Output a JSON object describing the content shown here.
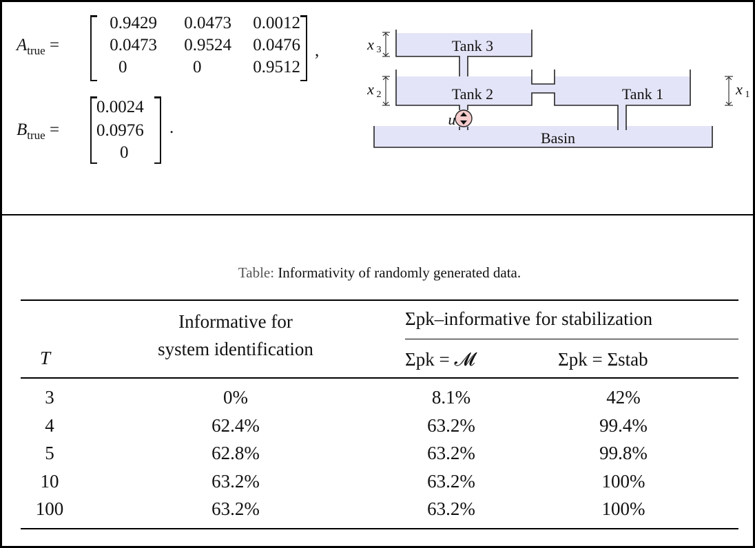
{
  "matrices": {
    "A_label": "A",
    "A_sub": "true",
    "A_rows": [
      [
        "0.9429",
        "0.0473",
        "0.0012"
      ],
      [
        "0.0473",
        "0.9524",
        "0.0476"
      ],
      [
        "0",
        "0",
        "0.9512"
      ]
    ],
    "A_trail": ",",
    "B_label": "B",
    "B_sub": "true",
    "B_rows": [
      "0.0024",
      "0.0976",
      "0"
    ],
    "B_trail": ".",
    "equals": "="
  },
  "diagram": {
    "tank3": "Tank 3",
    "tank2": "Tank 2",
    "tank1": "Tank 1",
    "basin": "Basin",
    "input": "u",
    "x1": "x",
    "x1_sub": "1",
    "x2": "x",
    "x2_sub": "2",
    "x3": "x",
    "x3_sub": "3",
    "colors": {
      "fill": "#e4e4f8",
      "pump": "#f6cccc"
    }
  },
  "table": {
    "caption_prefix": "Table:",
    "caption": "Informativity of randomly generated data.",
    "col_T": "T",
    "col_sysid_line1": "Informative for",
    "col_sysid_line2": "system identification",
    "group_header": "Σpk–informative for stabilization",
    "sub1": "Σpk = 𝓜",
    "sub2": "Σpk = Σstab",
    "rows": [
      [
        "3",
        "0%",
        "8.1%",
        "42%"
      ],
      [
        "4",
        "62.4%",
        "63.2%",
        "99.4%"
      ],
      [
        "5",
        "62.8%",
        "63.2%",
        "99.8%"
      ],
      [
        "10",
        "63.2%",
        "63.2%",
        "100%"
      ],
      [
        "100",
        "63.2%",
        "63.2%",
        "100%"
      ]
    ]
  }
}
